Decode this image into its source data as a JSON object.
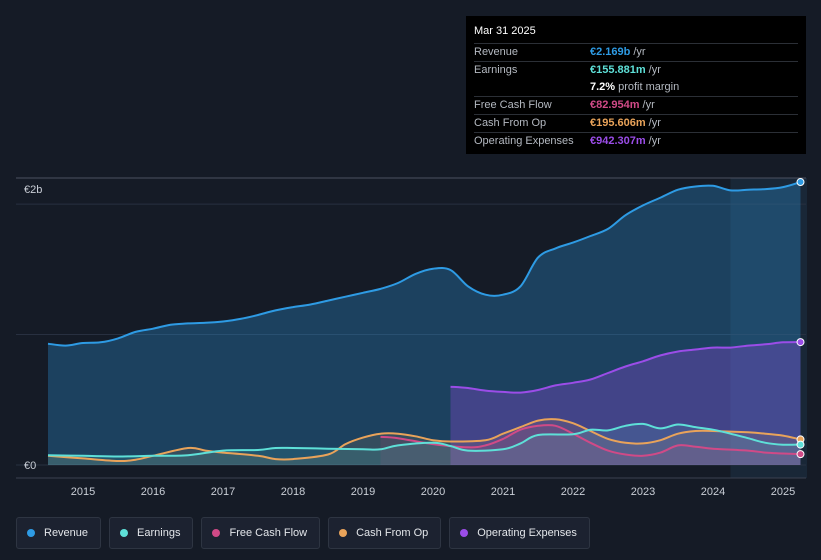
{
  "chart_data": {
    "type": "area",
    "currency_prefix": "€",
    "y_ticks": [
      {
        "value": 2000,
        "label": "€2b"
      },
      {
        "value": 0,
        "label": "€0"
      }
    ],
    "ylim": [
      -100,
      2200
    ],
    "xlim": [
      2014.5,
      2025.3
    ],
    "x_ticks": [
      2015,
      2016,
      2017,
      2018,
      2019,
      2020,
      2021,
      2022,
      2023,
      2024,
      2025
    ],
    "forecast_shade_from": 2024.25,
    "series": [
      {
        "name": "Revenue",
        "color": "#2e9be4",
        "fill_opacity": 0.3,
        "points": [
          [
            2014.5,
            930
          ],
          [
            2014.75,
            915
          ],
          [
            2015,
            935
          ],
          [
            2015.25,
            940
          ],
          [
            2015.5,
            970
          ],
          [
            2015.75,
            1020
          ],
          [
            2016,
            1045
          ],
          [
            2016.25,
            1075
          ],
          [
            2016.5,
            1085
          ],
          [
            2016.75,
            1090
          ],
          [
            2017,
            1100
          ],
          [
            2017.25,
            1120
          ],
          [
            2017.5,
            1150
          ],
          [
            2017.75,
            1185
          ],
          [
            2018,
            1210
          ],
          [
            2018.25,
            1230
          ],
          [
            2018.5,
            1260
          ],
          [
            2018.75,
            1290
          ],
          [
            2019,
            1320
          ],
          [
            2019.25,
            1350
          ],
          [
            2019.5,
            1395
          ],
          [
            2019.75,
            1465
          ],
          [
            2020,
            1505
          ],
          [
            2020.25,
            1495
          ],
          [
            2020.5,
            1370
          ],
          [
            2020.75,
            1305
          ],
          [
            2021,
            1305
          ],
          [
            2021.25,
            1370
          ],
          [
            2021.5,
            1590
          ],
          [
            2021.75,
            1660
          ],
          [
            2022,
            1705
          ],
          [
            2022.25,
            1755
          ],
          [
            2022.5,
            1810
          ],
          [
            2022.75,
            1915
          ],
          [
            2023,
            1990
          ],
          [
            2023.25,
            2050
          ],
          [
            2023.5,
            2110
          ],
          [
            2023.75,
            2135
          ],
          [
            2024,
            2140
          ],
          [
            2024.25,
            2105
          ],
          [
            2024.5,
            2110
          ],
          [
            2024.75,
            2115
          ],
          [
            2025,
            2130
          ],
          [
            2025.25,
            2169
          ]
        ]
      },
      {
        "name": "Earnings",
        "color": "#5ee0d8",
        "fill_opacity": 0.12,
        "points": [
          [
            2014.5,
            75
          ],
          [
            2015,
            70
          ],
          [
            2015.5,
            65
          ],
          [
            2016,
            70
          ],
          [
            2016.5,
            75
          ],
          [
            2017,
            110
          ],
          [
            2017.5,
            115
          ],
          [
            2017.75,
            130
          ],
          [
            2018,
            130
          ],
          [
            2018.5,
            125
          ],
          [
            2019,
            120
          ],
          [
            2019.25,
            120
          ],
          [
            2019.5,
            150
          ],
          [
            2020,
            170
          ],
          [
            2020.25,
            145
          ],
          [
            2020.5,
            110
          ],
          [
            2021,
            120
          ],
          [
            2021.25,
            165
          ],
          [
            2021.5,
            230
          ],
          [
            2022,
            235
          ],
          [
            2022.25,
            270
          ],
          [
            2022.5,
            265
          ],
          [
            2022.75,
            300
          ],
          [
            2023,
            315
          ],
          [
            2023.25,
            280
          ],
          [
            2023.5,
            310
          ],
          [
            2023.75,
            290
          ],
          [
            2024,
            270
          ],
          [
            2024.25,
            240
          ],
          [
            2024.5,
            205
          ],
          [
            2024.75,
            170
          ],
          [
            2025,
            155
          ],
          [
            2025.25,
            156
          ]
        ]
      },
      {
        "name": "Free Cash Flow",
        "color": "#d04a87",
        "fill_opacity": 0.12,
        "points": [
          [
            2019.25,
            215
          ],
          [
            2019.5,
            205
          ],
          [
            2020,
            160
          ],
          [
            2020.5,
            135
          ],
          [
            2020.75,
            150
          ],
          [
            2021,
            200
          ],
          [
            2021.25,
            270
          ],
          [
            2021.5,
            300
          ],
          [
            2021.75,
            300
          ],
          [
            2022,
            240
          ],
          [
            2022.25,
            170
          ],
          [
            2022.5,
            110
          ],
          [
            2022.75,
            80
          ],
          [
            2023,
            70
          ],
          [
            2023.25,
            95
          ],
          [
            2023.5,
            150
          ],
          [
            2023.75,
            140
          ],
          [
            2024,
            125
          ],
          [
            2024.5,
            110
          ],
          [
            2024.75,
            95
          ],
          [
            2025,
            88
          ],
          [
            2025.25,
            83
          ]
        ]
      },
      {
        "name": "Cash From Op",
        "color": "#e9a35a",
        "fill_opacity": 0.12,
        "points": [
          [
            2014.5,
            70
          ],
          [
            2015,
            50
          ],
          [
            2015.5,
            30
          ],
          [
            2015.75,
            40
          ],
          [
            2016,
            70
          ],
          [
            2016.5,
            130
          ],
          [
            2016.75,
            110
          ],
          [
            2017,
            95
          ],
          [
            2017.5,
            70
          ],
          [
            2017.75,
            45
          ],
          [
            2018,
            45
          ],
          [
            2018.5,
            80
          ],
          [
            2018.75,
            160
          ],
          [
            2019,
            210
          ],
          [
            2019.25,
            240
          ],
          [
            2019.5,
            240
          ],
          [
            2019.75,
            220
          ],
          [
            2020,
            190
          ],
          [
            2020.25,
            180
          ],
          [
            2020.75,
            190
          ],
          [
            2021,
            240
          ],
          [
            2021.25,
            290
          ],
          [
            2021.5,
            340
          ],
          [
            2021.75,
            350
          ],
          [
            2022,
            320
          ],
          [
            2022.25,
            260
          ],
          [
            2022.5,
            200
          ],
          [
            2022.75,
            170
          ],
          [
            2023,
            165
          ],
          [
            2023.25,
            190
          ],
          [
            2023.5,
            240
          ],
          [
            2023.75,
            260
          ],
          [
            2024,
            260
          ],
          [
            2024.5,
            250
          ],
          [
            2024.75,
            240
          ],
          [
            2025,
            225
          ],
          [
            2025.25,
            196
          ]
        ]
      },
      {
        "name": "Operating Expenses",
        "color": "#9b4de8",
        "fill_opacity": 0.3,
        "points": [
          [
            2020.25,
            600
          ],
          [
            2020.5,
            590
          ],
          [
            2020.75,
            570
          ],
          [
            2021,
            560
          ],
          [
            2021.25,
            555
          ],
          [
            2021.5,
            575
          ],
          [
            2021.75,
            610
          ],
          [
            2022,
            630
          ],
          [
            2022.25,
            655
          ],
          [
            2022.5,
            705
          ],
          [
            2022.75,
            755
          ],
          [
            2023,
            795
          ],
          [
            2023.25,
            840
          ],
          [
            2023.5,
            870
          ],
          [
            2023.75,
            885
          ],
          [
            2024,
            900
          ],
          [
            2024.25,
            900
          ],
          [
            2024.5,
            915
          ],
          [
            2024.75,
            925
          ],
          [
            2025,
            940
          ],
          [
            2025.25,
            942
          ]
        ]
      }
    ]
  },
  "tooltip": {
    "date": "Mar 31 2025",
    "rows": [
      {
        "label": "Revenue",
        "value": "€2.169b",
        "unit": "/yr",
        "color": "#2e9be4"
      },
      {
        "label": "Earnings",
        "value": "€155.881m",
        "unit": "/yr",
        "color": "#5ee0d8"
      },
      {
        "label": "",
        "value": "7.2%",
        "unit": "profit margin",
        "color": "#ffffff"
      },
      {
        "label": "Free Cash Flow",
        "value": "€82.954m",
        "unit": "/yr",
        "color": "#d04a87"
      },
      {
        "label": "Cash From Op",
        "value": "€195.606m",
        "unit": "/yr",
        "color": "#e9a35a"
      },
      {
        "label": "Operating Expenses",
        "value": "€942.307m",
        "unit": "/yr",
        "color": "#9b4de8"
      }
    ]
  },
  "legend": [
    {
      "label": "Revenue",
      "color": "#2e9be4"
    },
    {
      "label": "Earnings",
      "color": "#5ee0d8"
    },
    {
      "label": "Free Cash Flow",
      "color": "#d04a87"
    },
    {
      "label": "Cash From Op",
      "color": "#e9a35a"
    },
    {
      "label": "Operating Expenses",
      "color": "#9b4de8"
    }
  ]
}
